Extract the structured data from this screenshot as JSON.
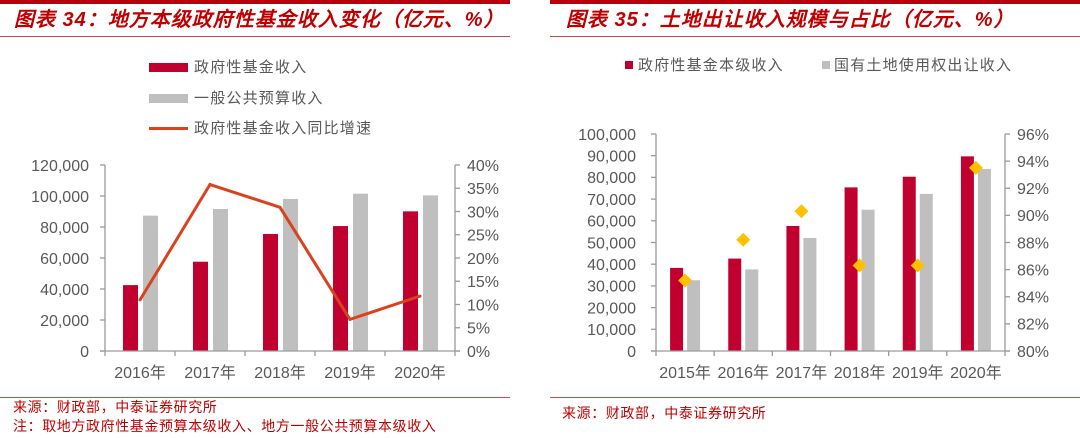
{
  "colors": {
    "accent": "#C00000",
    "axis": "#9A9A9A",
    "label": "#595959"
  },
  "panels": [
    {
      "source": "来源：财政部，中泰证券研究所",
      "note": "注：取地方政府性基金预算本级收入、地方一般公共预算本级收入"
    },
    {
      "source": "来源：财政部，中泰证券研究所"
    }
  ],
  "chart_data": [
    {
      "type": "bar+line",
      "title": "图表 34：地方本级政府性基金收入变化（亿元、%）",
      "categories": [
        "2016年",
        "2017年",
        "2018年",
        "2019年",
        "2020年"
      ],
      "series": [
        {
          "name": "政府性基金收入",
          "type": "bar",
          "axis": "left",
          "color": "#C0002F",
          "values": [
            42500,
            57600,
            75500,
            80600,
            90100
          ]
        },
        {
          "name": "一般公共预算收入",
          "type": "bar",
          "axis": "left",
          "color": "#BFBFBF",
          "values": [
            87300,
            91600,
            98100,
            101500,
            100400
          ]
        },
        {
          "name": "政府性基金收入同比增速",
          "type": "line",
          "axis": "right",
          "unit": "%",
          "color": "#D9421C",
          "values": [
            11.0,
            35.8,
            30.9,
            6.8,
            11.8
          ]
        }
      ],
      "xlabel": "",
      "ylabel": "",
      "ylim": [
        0,
        120000
      ],
      "y2lim": [
        0,
        40
      ],
      "yticks": [
        "0",
        "20,000",
        "40,000",
        "60,000",
        "80,000",
        "100,000",
        "120,000"
      ],
      "y2ticks": [
        "0%",
        "5%",
        "10%",
        "15%",
        "20%",
        "25%",
        "30%",
        "35%",
        "40%"
      ],
      "grid": false,
      "legend": "top"
    },
    {
      "type": "bar+scatter",
      "title": "图表 35：土地出让收入规模与占比（亿元、%）",
      "categories": [
        "2015年",
        "2016年",
        "2017年",
        "2018年",
        "2019年",
        "2020年"
      ],
      "series": [
        {
          "name": "政府性基金本级收入",
          "type": "bar",
          "axis": "left",
          "color": "#C0002F",
          "values": [
            38300,
            42600,
            57600,
            75400,
            80300,
            89700
          ]
        },
        {
          "name": "国有土地使用权出让收入",
          "type": "bar",
          "axis": "left",
          "color": "#BFBFBF",
          "values": [
            32600,
            37600,
            52100,
            65100,
            72400,
            83900
          ]
        },
        {
          "type": "scatter",
          "marker": "diamond",
          "axis": "right",
          "unit": "%",
          "color": "#FFC000",
          "values": [
            85.2,
            88.2,
            90.3,
            86.3,
            86.3,
            93.5
          ]
        }
      ],
      "xlabel": "",
      "ylabel": "",
      "ylim": [
        0,
        100000
      ],
      "y2lim": [
        80,
        96
      ],
      "yticks": [
        "0",
        "10,000",
        "20,000",
        "30,000",
        "40,000",
        "50,000",
        "60,000",
        "70,000",
        "80,000",
        "90,000",
        "100,000"
      ],
      "y2ticks": [
        "80%",
        "82%",
        "84%",
        "86%",
        "88%",
        "90%",
        "92%",
        "94%",
        "96%"
      ],
      "grid": false,
      "legend": "top"
    }
  ]
}
